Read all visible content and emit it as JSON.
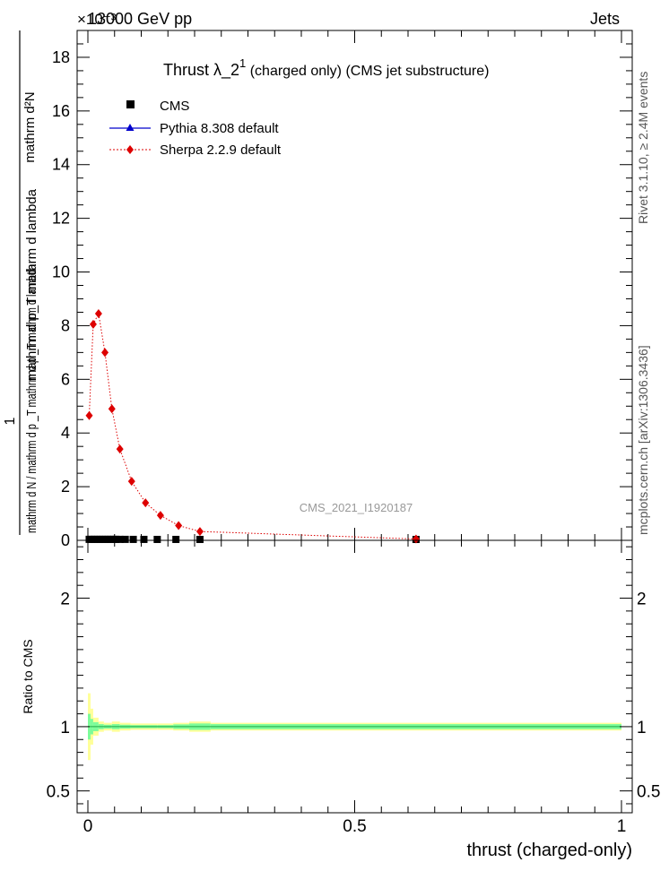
{
  "header": {
    "energy_label": "13000 GeV pp",
    "process_label": "Jets",
    "exponent_label": "×10⁻³"
  },
  "side_labels": {
    "rivet": "Rivet 3.1.10, ≥ 2.4M events",
    "mcplots": "mcplots.cern.ch [arXiv:1306.3436]"
  },
  "colors": {
    "cms": "#000000",
    "pythia": "#0000cc",
    "sherpa": "#dd0000",
    "band_inner": "#7cfc9a",
    "band_outer": "#ffff99",
    "ratio_line": "#22aa44"
  },
  "chart_data": [
    {
      "type": "scatter",
      "panel": "main",
      "title": "Thrust λ_2¹ (charged only) (CMS jet substructure)",
      "title_main": "Thrust λ_2",
      "title_sup": "1",
      "title_rest": " (charged only) (CMS jet substructure)",
      "analysis_label": "CMS_2021_I1920187",
      "ylabel_numerator": "1",
      "ylabel_denominator": "mathrm d N / mathrm d p _T mathrm d p _T mathrm d lambda",
      "ylabel_top": "mathrm d²N",
      "xlim": [
        0,
        1
      ],
      "ylim": [
        0,
        19
      ],
      "y_scale_factor": "1e-3",
      "grid": false,
      "legend_position": "top-left",
      "legend": [
        "CMS",
        "Pythia 8.308 default",
        "Sherpa 2.2.9 default"
      ],
      "y_ticks": [
        0,
        2,
        4,
        6,
        8,
        10,
        12,
        14,
        16,
        18
      ],
      "series": [
        {
          "name": "CMS",
          "marker": "square",
          "points": [
            {
              "x": 0.0025,
              "y": 0.004
            },
            {
              "x": 0.0075,
              "y": 0.004
            },
            {
              "x": 0.0125,
              "y": 0.004
            },
            {
              "x": 0.0175,
              "y": 0.004
            },
            {
              "x": 0.0225,
              "y": 0.004
            },
            {
              "x": 0.0275,
              "y": 0.004
            },
            {
              "x": 0.0325,
              "y": 0.004
            },
            {
              "x": 0.0375,
              "y": 0.004
            },
            {
              "x": 0.0425,
              "y": 0.004
            },
            {
              "x": 0.0475,
              "y": 0.004
            },
            {
              "x": 0.0525,
              "y": 0.004
            },
            {
              "x": 0.06,
              "y": 0.003
            },
            {
              "x": 0.07,
              "y": 0.003
            },
            {
              "x": 0.085,
              "y": 0.002
            },
            {
              "x": 0.105,
              "y": 0.002
            },
            {
              "x": 0.13,
              "y": 0.001
            },
            {
              "x": 0.165,
              "y": 0.001
            },
            {
              "x": 0.21,
              "y": 0.0005
            },
            {
              "x": 0.615,
              "y": 0.0001
            }
          ]
        },
        {
          "name": "Pythia 8.308 default",
          "marker": "triangle",
          "points": []
        },
        {
          "name": "Sherpa 2.2.9 default",
          "marker": "diamond",
          "points": [
            {
              "x": 0.0025,
              "y": 4.65
            },
            {
              "x": 0.01,
              "y": 8.05
            },
            {
              "x": 0.02,
              "y": 8.45
            },
            {
              "x": 0.032,
              "y": 7.0
            },
            {
              "x": 0.045,
              "y": 4.9
            },
            {
              "x": 0.06,
              "y": 3.4
            },
            {
              "x": 0.082,
              "y": 2.2
            },
            {
              "x": 0.108,
              "y": 1.4
            },
            {
              "x": 0.136,
              "y": 0.93
            },
            {
              "x": 0.17,
              "y": 0.55
            },
            {
              "x": 0.21,
              "y": 0.33
            },
            {
              "x": 0.615,
              "y": 0.05
            }
          ]
        }
      ]
    },
    {
      "type": "line",
      "panel": "ratio",
      "ylabel": "Ratio to CMS",
      "xlabel": "thrust (charged-only)",
      "xlim": [
        0,
        1
      ],
      "ylim": [
        0.33,
        2.45
      ],
      "y_ticks": [
        0.5,
        1,
        2
      ],
      "x_ticks": [
        0,
        0.5,
        1
      ],
      "x_tick_labels": [
        "0",
        "0.5",
        "1"
      ],
      "reference": 1,
      "band_edges": [
        0,
        0.005,
        0.01,
        0.02,
        0.03,
        0.045,
        0.06,
        0.08,
        0.1,
        0.13,
        0.16,
        0.19,
        0.23,
        0.3,
        1.0
      ],
      "band_inner": [
        0.1,
        0.06,
        0.035,
        0.02,
        0.015,
        0.02,
        0.015,
        0.012,
        0.012,
        0.012,
        0.018,
        0.025,
        0.02,
        0.02
      ],
      "band_outer": [
        0.26,
        0.14,
        0.07,
        0.04,
        0.03,
        0.04,
        0.03,
        0.025,
        0.025,
        0.025,
        0.03,
        0.04,
        0.03,
        0.03
      ]
    }
  ]
}
